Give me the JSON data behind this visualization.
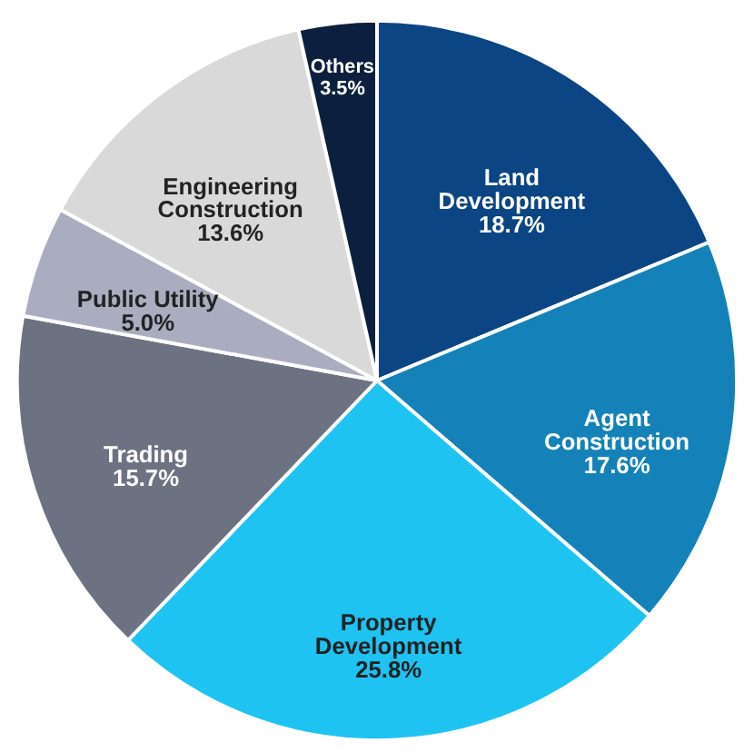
{
  "chart_data": {
    "type": "pie",
    "categories": [
      "Land Development",
      "Agent Construction",
      "Property Development",
      "Trading",
      "Public Utility",
      "Engineering Construction",
      "Others"
    ],
    "values": [
      18.7,
      17.6,
      25.8,
      15.7,
      5.0,
      13.6,
      3.5
    ],
    "colors": [
      "#0b4583",
      "#1482b8",
      "#1ec3f2",
      "#6d7282",
      "#a9adbf",
      "#d9d9d9",
      "#0c1f3e"
    ],
    "value_labels": [
      "18.7%",
      "17.6%",
      "25.8%",
      "15.7%",
      "5.0%",
      "13.6%",
      "3.5%"
    ],
    "data_labels": true,
    "legend": false
  }
}
